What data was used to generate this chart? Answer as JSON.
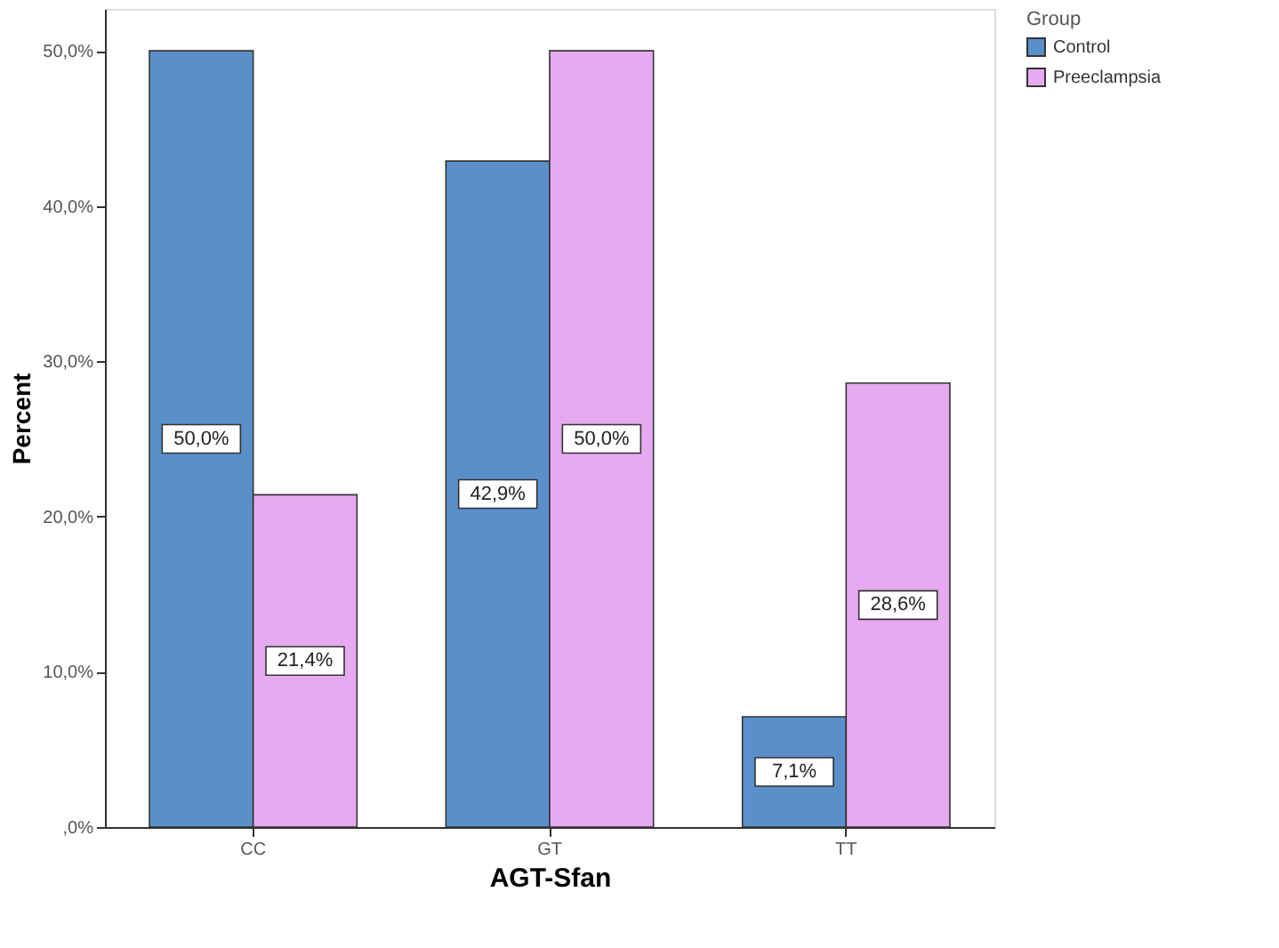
{
  "chart_data": {
    "type": "bar",
    "xlabel": "AGT-Sfan",
    "ylabel": "Percent",
    "legend_title": "Group",
    "categories": [
      "CC",
      "GT",
      "TT"
    ],
    "series": [
      {
        "name": "Control",
        "color": "#5b8fc9",
        "values": [
          50.0,
          42.9,
          7.1
        ],
        "value_labels": [
          "50,0%",
          "42,9%",
          "7,1%"
        ]
      },
      {
        "name": "Preeclampsia",
        "color": "#e6aaf0",
        "values": [
          21.4,
          50.0,
          28.6
        ],
        "value_labels": [
          "21,4%",
          "50,0%",
          "28,6%"
        ]
      }
    ],
    "ylim": [
      0,
      52.7
    ],
    "yticks": [
      {
        "value": 0,
        "label": ",0%"
      },
      {
        "value": 10,
        "label": "10,0%"
      },
      {
        "value": 20,
        "label": "20,0%"
      },
      {
        "value": 30,
        "label": "30,0%"
      },
      {
        "value": 40,
        "label": "40,0%"
      },
      {
        "value": 50,
        "label": "50,0%"
      }
    ],
    "grid": false,
    "legend": "top right"
  }
}
